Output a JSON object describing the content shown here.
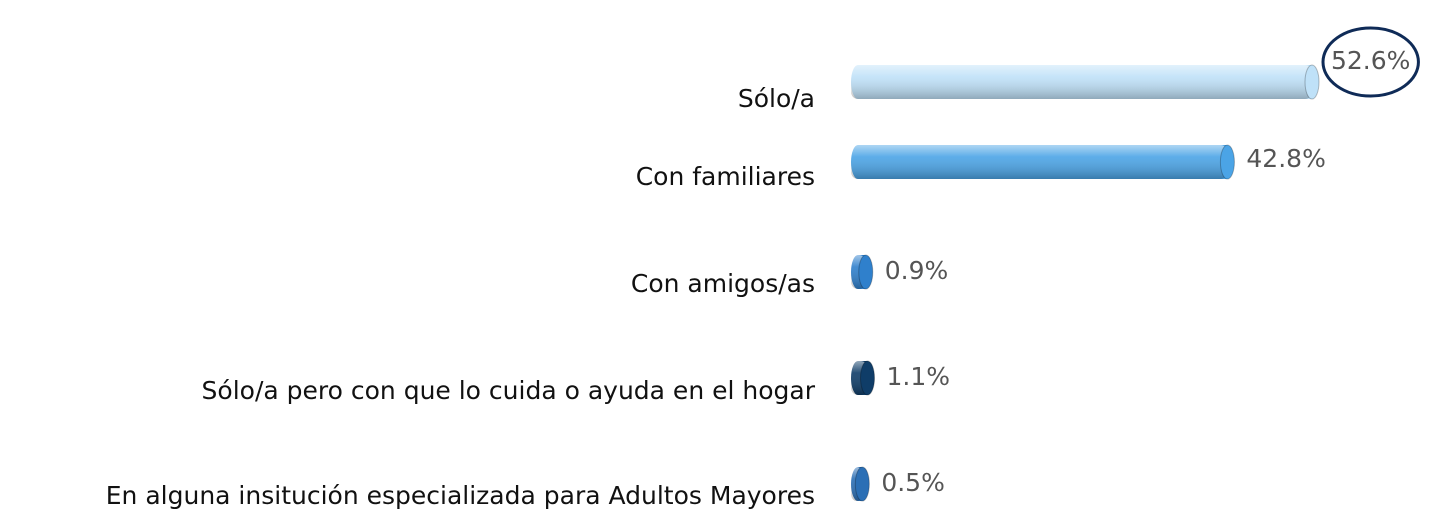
{
  "chart_data": {
    "type": "bar",
    "orientation": "horizontal",
    "categories": [
      "Sólo/a",
      "Con familiares",
      "Con amigos/as",
      "Sólo/a pero con que lo cuida o ayuda en el hogar",
      "En alguna insitución especializada para Adultos Mayores"
    ],
    "values": [
      52.6,
      42.8,
      0.9,
      1.1,
      0.5
    ],
    "value_labels": [
      "52.6%",
      "42.8%",
      "0.9%",
      "1.1%",
      "0.5%"
    ],
    "colors": [
      "#bfe1f8",
      "#4ba4e6",
      "#2f80cc",
      "#0f3d68",
      "#2b6fb5"
    ]
  }
}
